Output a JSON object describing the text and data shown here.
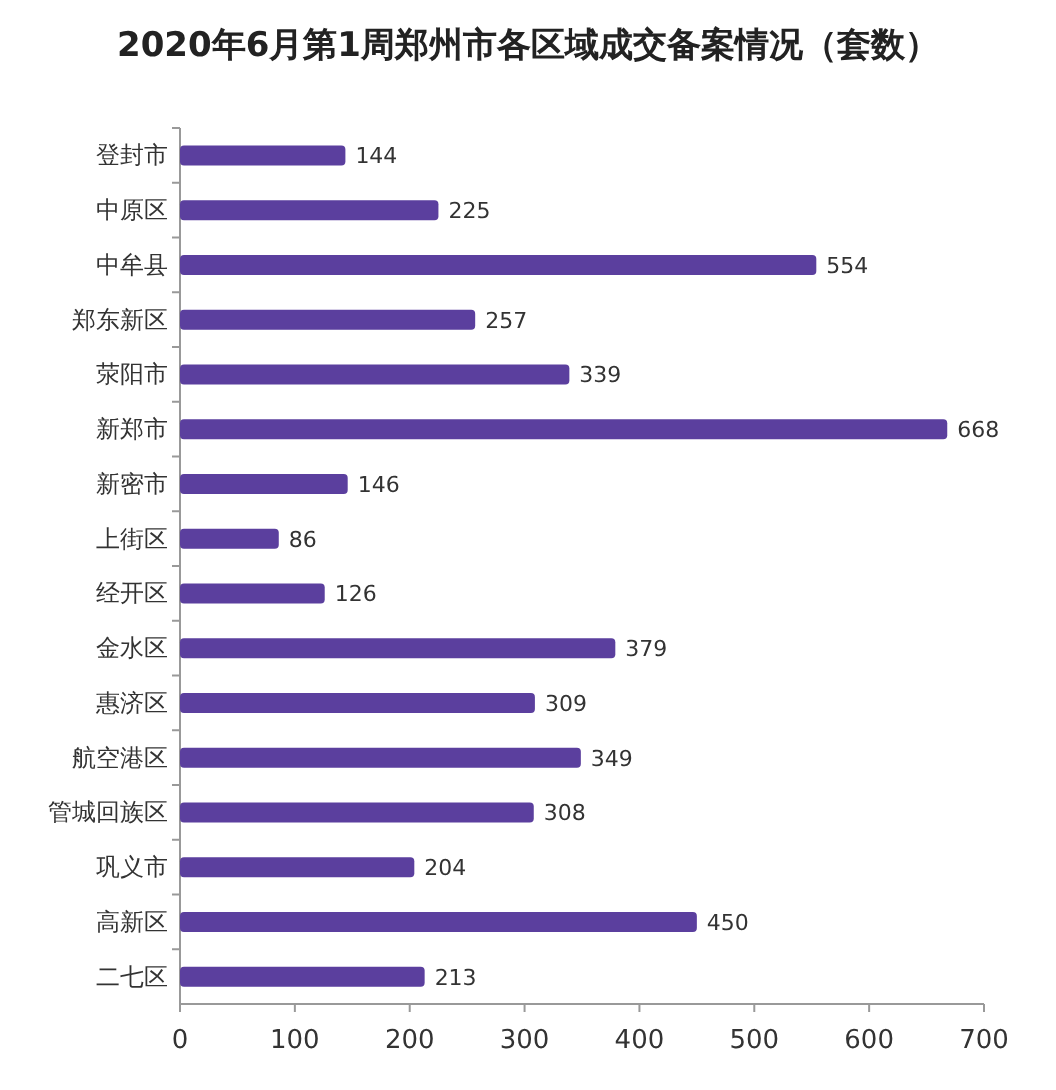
{
  "chart_data": {
    "type": "bar",
    "orientation": "horizontal",
    "title": "2020年6月第1周郑州市各区域成交备案情况（套数）",
    "categories": [
      "登封市",
      "中原区",
      "中牟县",
      "郑东新区",
      "荥阳市",
      "新郑市",
      "新密市",
      "上街区",
      "经开区",
      "金水区",
      "惠济区",
      "航空港区",
      "管城回族区",
      "巩义市",
      "高新区",
      "二七区"
    ],
    "values": [
      144,
      225,
      554,
      257,
      339,
      668,
      146,
      86,
      126,
      379,
      309,
      349,
      308,
      204,
      450,
      213
    ],
    "color": "#5b3f9e",
    "xlim": [
      0,
      700
    ],
    "xticks": [
      0,
      100,
      200,
      300,
      400,
      500,
      600,
      700
    ],
    "data_labels": true
  }
}
